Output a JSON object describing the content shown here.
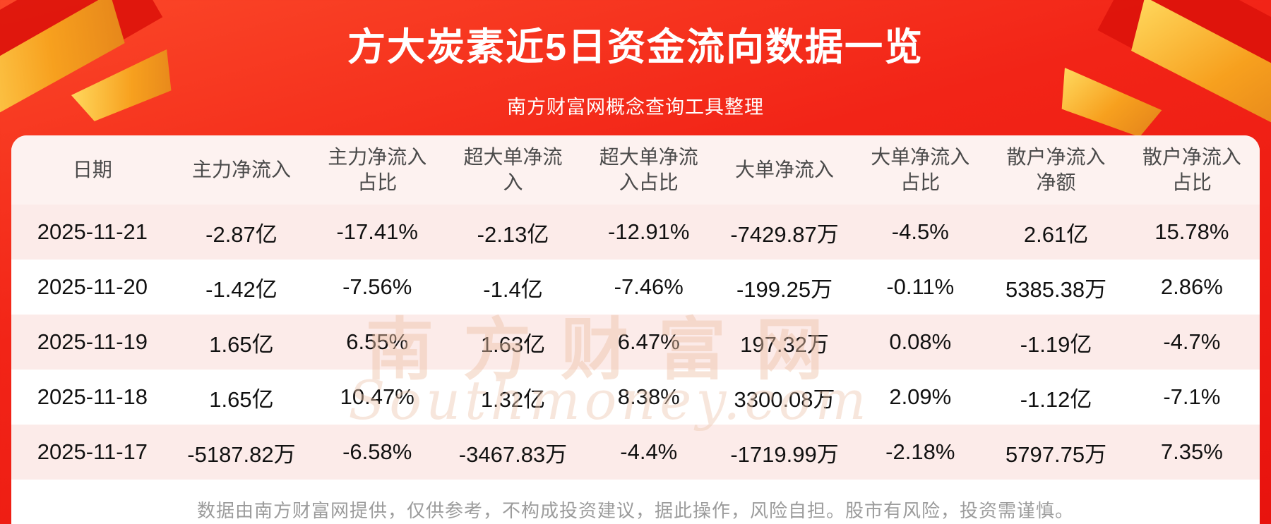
{
  "header": {
    "title": "方大炭素近5日资金流向数据一览",
    "subtitle": "南方财富网概念查询工具整理"
  },
  "chart_data": {
    "type": "table",
    "title": "方大炭素近5日资金流向数据一览",
    "columns": [
      "日期",
      "主力净流入",
      "主力净流入占比",
      "超大单净流入",
      "超大单净流入占比",
      "大单净流入",
      "大单净流入占比",
      "散户净流入净额",
      "散户净流入占比"
    ],
    "rows": [
      [
        "2025-11-21",
        "-2.87亿",
        "-17.41%",
        "-2.13亿",
        "-12.91%",
        "-7429.87万",
        "-4.5%",
        "2.61亿",
        "15.78%"
      ],
      [
        "2025-11-20",
        "-1.42亿",
        "-7.56%",
        "-1.4亿",
        "-7.46%",
        "-199.25万",
        "-0.11%",
        "5385.38万",
        "2.86%"
      ],
      [
        "2025-11-19",
        "1.65亿",
        "6.55%",
        "1.63亿",
        "6.47%",
        "197.32万",
        "0.08%",
        "-1.19亿",
        "-4.7%"
      ],
      [
        "2025-11-18",
        "1.65亿",
        "10.47%",
        "1.32亿",
        "8.38%",
        "3300.08万",
        "2.09%",
        "-1.12亿",
        "-7.1%"
      ],
      [
        "2025-11-17",
        "-5187.82万",
        "-6.58%",
        "-3467.83万",
        "-4.4%",
        "-1719.99万",
        "-2.18%",
        "5797.75万",
        "7.35%"
      ]
    ]
  },
  "watermark": {
    "cn": "南方财富网",
    "en": "Southmoney.com"
  },
  "footer": {
    "disclaimer": "数据由南方财富网提供，仅供参考，不构成投资建议，据此操作，风险自担。股市有风险，投资需谨慎。"
  },
  "colors": {
    "background_red": "#f22417",
    "ribbon_gold": "#f7a01e",
    "ribbon_dark_red": "#dd130b",
    "header_row_pink": "#fdf2f0",
    "row_pink": "#fcebe9",
    "row_white": "#ffffff",
    "title_white": "#ffffff",
    "header_text_gray": "#4a4a4a",
    "cell_text_dark": "#111111",
    "footer_gray": "#9c9c9c",
    "watermark_tan": "#eec3a8"
  }
}
